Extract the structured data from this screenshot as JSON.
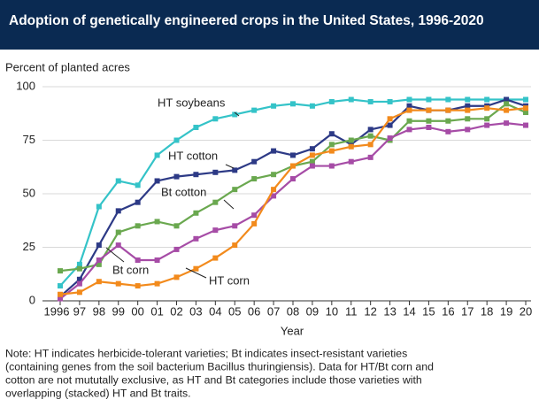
{
  "chart_data": {
    "type": "line",
    "title": "Adoption of genetically engineered crops in the United States, 1996-2020",
    "y_label": "Percent of planted acres",
    "x_label": "Year",
    "categories": [
      "1996",
      "97",
      "98",
      "99",
      "00",
      "01",
      "02",
      "03",
      "04",
      "05",
      "06",
      "07",
      "08",
      "09",
      "10",
      "11",
      "12",
      "13",
      "14",
      "15",
      "16",
      "17",
      "18",
      "19",
      "20"
    ],
    "ylim": [
      0,
      100
    ],
    "yticks": [
      0,
      25,
      50,
      75,
      100
    ],
    "grid": true,
    "series": [
      {
        "name": "HT soybeans",
        "color": "#34c3c8",
        "values": [
          7,
          17,
          44,
          56,
          54,
          68,
          75,
          81,
          85,
          87,
          89,
          91,
          92,
          91,
          93,
          94,
          93,
          93,
          94,
          94,
          94,
          94,
          94,
          94,
          94
        ]
      },
      {
        "name": "HT cotton",
        "color": "#2d3a86",
        "values": [
          2,
          10,
          26,
          42,
          46,
          56,
          58,
          59,
          60,
          61,
          65,
          70,
          68,
          71,
          78,
          73,
          80,
          82,
          91,
          89,
          89,
          91,
          91,
          94,
          91
        ]
      },
      {
        "name": "Bt cotton",
        "color": "#6aa84f",
        "values": [
          14,
          15,
          17,
          32,
          35,
          37,
          35,
          41,
          46,
          52,
          57,
          59,
          63,
          65,
          73,
          75,
          77,
          75,
          84,
          84,
          84,
          85,
          85,
          92,
          88
        ]
      },
      {
        "name": "Bt corn",
        "color": "#a64ca6",
        "values": [
          1,
          8,
          19,
          26,
          19,
          19,
          24,
          29,
          33,
          35,
          40,
          49,
          57,
          63,
          63,
          65,
          67,
          76,
          80,
          81,
          79,
          80,
          82,
          83,
          82
        ]
      },
      {
        "name": "HT corn",
        "color": "#f28a1c",
        "values": [
          3,
          4,
          9,
          8,
          7,
          8,
          11,
          15,
          20,
          26,
          36,
          52,
          63,
          68,
          70,
          72,
          73,
          85,
          89,
          89,
          89,
          89,
          90,
          89,
          90
        ]
      }
    ],
    "note": [
      "Note: HT indicates herbicide-tolerant varieties; Bt indicates insect-resistant varieties",
      "(containing genes from the soil bacterium Bacillus thuringiensis). Data for HT/Bt corn and",
      "cotton are not mututally exclusive, as HT and Bt categories include those varieties with",
      "overlapping (stacked) HT and Bt traits."
    ]
  }
}
